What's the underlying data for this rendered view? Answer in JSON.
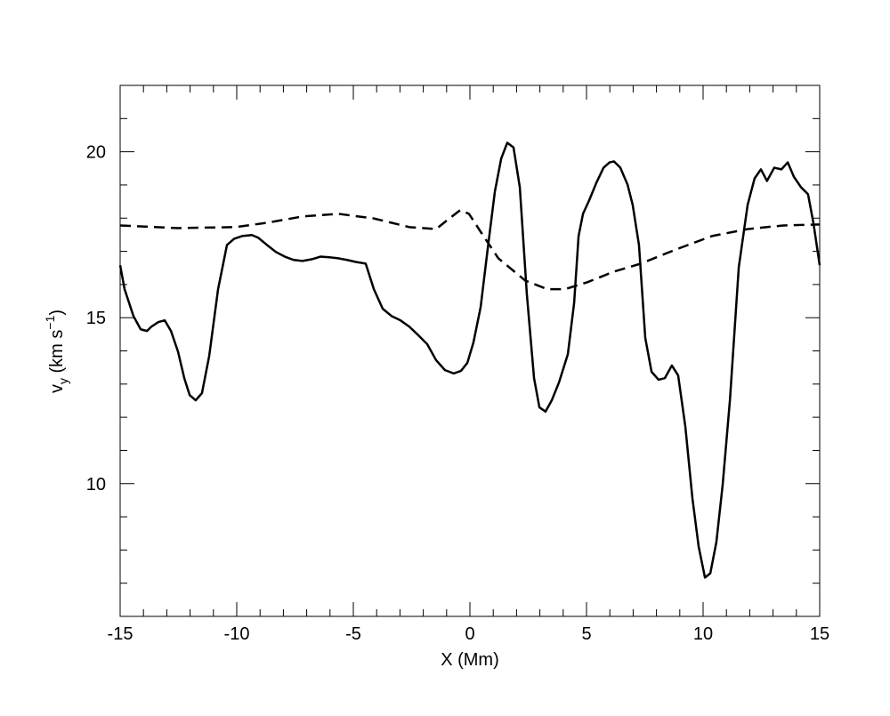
{
  "chart_data": {
    "type": "line",
    "xlabel": "X (Mm)",
    "ylabel": [
      "v",
      "y",
      " (km s",
      "−1",
      ")"
    ],
    "xlim": [
      -15,
      15
    ],
    "ylim": [
      6,
      22
    ],
    "xticks": [
      -15,
      -10,
      -5,
      0,
      5,
      10,
      15
    ],
    "yticks": [
      10,
      15,
      20
    ],
    "xminorticks": [
      -14,
      -13,
      -12,
      -11,
      -9,
      -8,
      -7,
      -6,
      -4,
      -3,
      -2,
      -1,
      1,
      2,
      3,
      4,
      6,
      7,
      8,
      9,
      11,
      12,
      13,
      14
    ],
    "yminorticks": [
      7,
      8,
      9,
      11,
      12,
      13,
      14,
      16,
      17,
      18,
      19,
      21
    ],
    "series": [
      {
        "color": "#000000",
        "dash": false,
        "x": [
          -15,
          -14.81,
          -14.43,
          -14.12,
          -13.85,
          -13.66,
          -13.36,
          -13.09,
          -12.82,
          -12.52,
          -12.25,
          -12.02,
          -11.76,
          -11.49,
          -11.18,
          -10.8,
          -10.42,
          -10.11,
          -9.77,
          -9.35,
          -9.08,
          -8.7,
          -8.32,
          -7.94,
          -7.56,
          -7.18,
          -6.79,
          -6.41,
          -6.03,
          -5.65,
          -5.27,
          -4.89,
          -4.47,
          -4.12,
          -3.74,
          -3.36,
          -2.98,
          -2.6,
          -2.21,
          -1.83,
          -1.45,
          -1.07,
          -0.69,
          -0.38,
          -0.11,
          0.15,
          0.46,
          0.76,
          1.07,
          1.34,
          1.6,
          1.87,
          2.14,
          2.44,
          2.75,
          2.98,
          3.24,
          3.51,
          3.82,
          4.2,
          4.47,
          4.66,
          4.85,
          5.11,
          5.42,
          5.73,
          5.99,
          6.18,
          6.45,
          6.76,
          6.98,
          7.25,
          7.52,
          7.79,
          8.09,
          8.36,
          8.66,
          8.93,
          9.24,
          9.54,
          9.81,
          10.08,
          10.31,
          10.57,
          10.84,
          11.15,
          11.53,
          11.91,
          12.21,
          12.48,
          12.74,
          13.05,
          13.36,
          13.63,
          13.89,
          14.2,
          14.5,
          14.73,
          15
        ],
        "values": [
          16.58,
          15.86,
          15.05,
          14.65,
          14.6,
          14.73,
          14.87,
          14.92,
          14.6,
          13.98,
          13.18,
          12.67,
          12.51,
          12.73,
          13.85,
          15.86,
          17.19,
          17.38,
          17.46,
          17.49,
          17.41,
          17.19,
          16.98,
          16.84,
          16.74,
          16.71,
          16.76,
          16.84,
          16.82,
          16.79,
          16.74,
          16.68,
          16.63,
          15.86,
          15.27,
          15.05,
          14.92,
          14.73,
          14.47,
          14.2,
          13.72,
          13.42,
          13.32,
          13.4,
          13.64,
          14.25,
          15.32,
          17.06,
          18.8,
          19.79,
          20.27,
          20.13,
          18.93,
          15.72,
          13.18,
          12.3,
          12.17,
          12.51,
          13.05,
          13.9,
          15.45,
          17.46,
          18.13,
          18.53,
          19.06,
          19.52,
          19.68,
          19.71,
          19.52,
          19.01,
          18.4,
          17.19,
          14.39,
          13.37,
          13.13,
          13.18,
          13.56,
          13.26,
          11.71,
          9.57,
          8.1,
          7.17,
          7.3,
          8.24,
          9.97,
          12.51,
          16.52,
          18.4,
          19.2,
          19.47,
          19.12,
          19.52,
          19.47,
          19.68,
          19.25,
          18.93,
          18.72,
          17.86,
          16.58
        ]
      },
      {
        "color": "#000000",
        "dash": true,
        "x": [
          -15,
          -12.52,
          -10.04,
          -8.7,
          -7.18,
          -5.65,
          -4.12,
          -2.6,
          -1.45,
          -0.88,
          -0.42,
          -0.04,
          0.46,
          1.22,
          2.37,
          3.32,
          4.08,
          5.04,
          6.18,
          7.33,
          8.85,
          10.38,
          11.91,
          13.44,
          15
        ],
        "values": [
          17.78,
          17.7,
          17.73,
          17.86,
          18.05,
          18.13,
          17.99,
          17.73,
          17.67,
          17.99,
          18.24,
          18.13,
          17.59,
          16.79,
          16.12,
          15.86,
          15.86,
          16.07,
          16.39,
          16.63,
          17.06,
          17.46,
          17.67,
          17.78,
          17.81
        ]
      }
    ]
  }
}
